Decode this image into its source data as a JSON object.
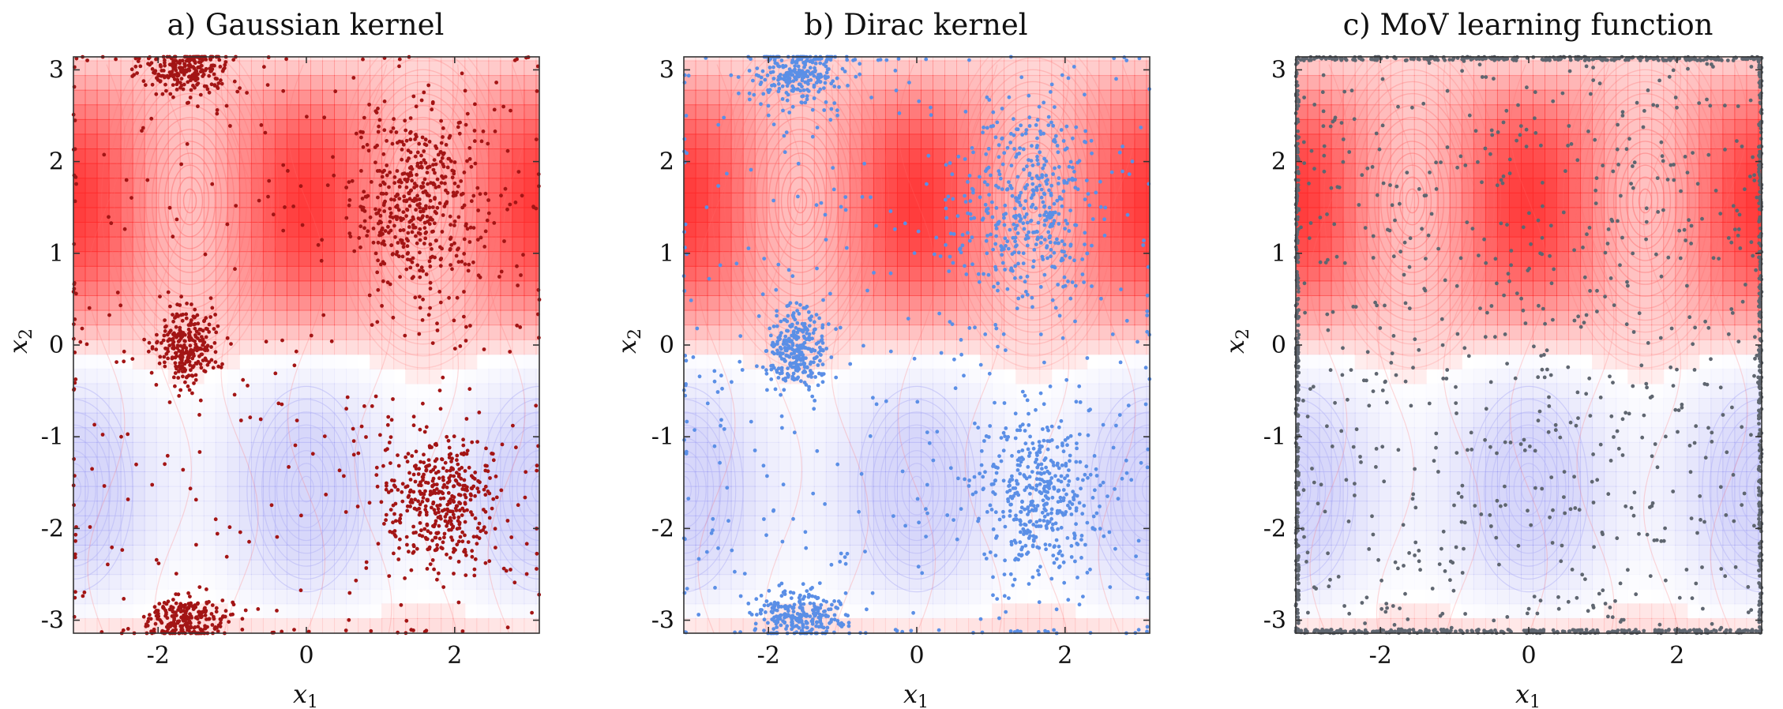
{
  "chart_data": [
    {
      "type": "scatter",
      "title": "a) Gaussian kernel",
      "xlabel": "x",
      "xlabel_sub": "1",
      "ylabel": "x",
      "ylabel_sub": "2",
      "xlim": [
        -3.1416,
        3.1416
      ],
      "ylim": [
        -3.1416,
        3.1416
      ],
      "xticks": [
        -2,
        0,
        2
      ],
      "xtick_labels": [
        "-2",
        "0",
        "2"
      ],
      "yticks": [
        -3,
        -2,
        -1,
        0,
        1,
        2,
        3
      ],
      "ytick_labels": [
        "-3",
        "-2",
        "-1",
        "0",
        "1",
        "2",
        "3"
      ],
      "background": "learned function heatmap with trajectory contours; red maxima near (-1.57, 1.57) and (1.57, 1.57), blue minima near (0, -1.57) and (±3.14, -1.57)",
      "point_color": "#a31515",
      "clusters": [
        {
          "center": [
            1.5,
            1.55
          ],
          "spread": [
            0.45,
            0.5
          ],
          "count": 480
        },
        {
          "center": [
            1.8,
            -1.7
          ],
          "spread": [
            0.4,
            0.38
          ],
          "count": 420
        },
        {
          "center": [
            -1.6,
            0.0
          ],
          "spread": [
            0.22,
            0.22
          ],
          "count": 260
        },
        {
          "center": [
            -1.6,
            3.0
          ],
          "spread": [
            0.3,
            0.12
          ],
          "count": 230
        },
        {
          "center": [
            -1.6,
            -3.0
          ],
          "spread": [
            0.3,
            0.12
          ],
          "count": 230
        }
      ],
      "scatter_count": 260,
      "edge_count": 90
    },
    {
      "type": "scatter",
      "title": "b) Dirac kernel",
      "xlabel": "x",
      "xlabel_sub": "1",
      "ylabel": "x",
      "ylabel_sub": "2",
      "xlim": [
        -3.1416,
        3.1416
      ],
      "ylim": [
        -3.1416,
        3.1416
      ],
      "xticks": [
        -2,
        0,
        2
      ],
      "xtick_labels": [
        "-2",
        "0",
        "2"
      ],
      "yticks": [
        -3,
        -2,
        -1,
        0,
        1,
        2,
        3
      ],
      "ytick_labels": [
        "-3",
        "-2",
        "-1",
        "0",
        "1",
        "2",
        "3"
      ],
      "background": "learned function heatmap with trajectory contours",
      "point_color": "#5b8fe6",
      "clusters": [
        {
          "center": [
            1.5,
            1.55
          ],
          "spread": [
            0.5,
            0.55
          ],
          "count": 420
        },
        {
          "center": [
            1.6,
            -1.65
          ],
          "spread": [
            0.42,
            0.42
          ],
          "count": 420
        },
        {
          "center": [
            -1.6,
            -0.05
          ],
          "spread": [
            0.22,
            0.24
          ],
          "count": 280
        },
        {
          "center": [
            -1.6,
            2.95
          ],
          "spread": [
            0.3,
            0.16
          ],
          "count": 240
        },
        {
          "center": [
            -1.6,
            -2.95
          ],
          "spread": [
            0.3,
            0.14
          ],
          "count": 260
        }
      ],
      "scatter_count": 330,
      "edge_count": 70
    },
    {
      "type": "scatter",
      "title": "c) MoV learning function",
      "xlabel": "x",
      "xlabel_sub": "1",
      "ylabel": "x",
      "ylabel_sub": "2",
      "xlim": [
        -3.1416,
        3.1416
      ],
      "ylim": [
        -3.1416,
        3.1416
      ],
      "xticks": [
        -2,
        0,
        2
      ],
      "xtick_labels": [
        "-2",
        "0",
        "2"
      ],
      "yticks": [
        -3,
        -2,
        -1,
        0,
        1,
        2,
        3
      ],
      "ytick_labels": [
        "-3",
        "-2",
        "-1",
        "0",
        "1",
        "2",
        "3"
      ],
      "background": "learned function heatmap with trajectory contours",
      "point_color": "#5f6670",
      "clusters": [],
      "scatter_count": 700,
      "edge_count": 1100
    }
  ],
  "colors": {
    "heat_red": "#ff2a2a",
    "heat_blue": "#8c8cf0",
    "contour_red": "#ff6b6b",
    "contour_blue": "#b4b4f5"
  }
}
